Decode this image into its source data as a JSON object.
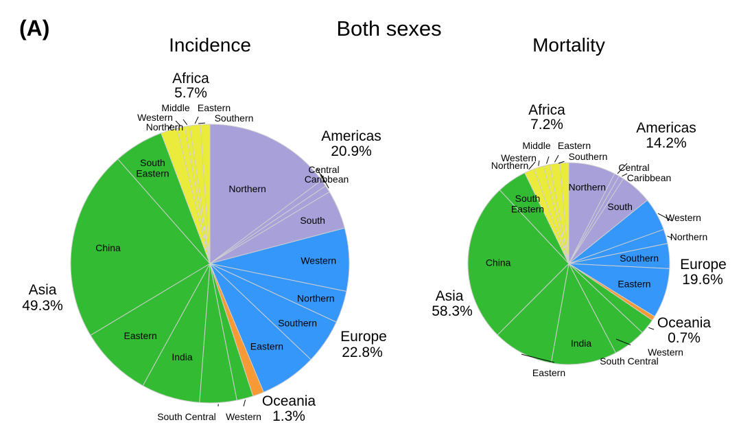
{
  "panel_label": "(A)",
  "title": "Both sexes",
  "colors": {
    "Africa": "#ebeb3b",
    "Americas": "#a8a0d9",
    "Europe": "#3697fa",
    "Oceania": "#f79a36",
    "Asia": "#33bb33",
    "divider": "#d0d0d0"
  },
  "chart_data": [
    {
      "type": "pie",
      "title": "Incidence",
      "regions": [
        {
          "name": "Americas",
          "percent": "20.9%",
          "value": 20.9,
          "subregions": [
            {
              "label": "Northern",
              "value": 14.8
            },
            {
              "label": "Central",
              "value": 0.8
            },
            {
              "label": "Caribbean",
              "value": 0.8
            },
            {
              "label": "South",
              "value": 4.5
            }
          ]
        },
        {
          "name": "Europe",
          "percent": "22.8%",
          "value": 22.8,
          "subregions": [
            {
              "label": "Western",
              "value": 7.3
            },
            {
              "label": "Northern",
              "value": 3.7
            },
            {
              "label": "Southern",
              "value": 5.2
            },
            {
              "label": "Eastern",
              "value": 6.6
            }
          ]
        },
        {
          "name": "Oceania",
          "percent": "1.3%",
          "value": 1.3,
          "subregions": [
            {
              "label": "",
              "value": 1.3
            }
          ]
        },
        {
          "name": "Asia",
          "percent": "49.3%",
          "value": 49.3,
          "subregions": [
            {
              "label": "Western",
              "value": 1.9
            },
            {
              "label": "South Central",
              "value": 4.3
            },
            {
              "label": "India",
              "value": 6.8
            },
            {
              "label": "Eastern",
              "value": 8.4
            },
            {
              "label": "China",
              "value": 22.1
            },
            {
              "label": "South Eastern",
              "value": 5.8
            }
          ]
        },
        {
          "name": "Africa",
          "percent": "5.7%",
          "value": 5.7,
          "subregions": [
            {
              "label": "Northern",
              "value": 1.9
            },
            {
              "label": "Western",
              "value": 0.9
            },
            {
              "label": "Middle",
              "value": 0.6
            },
            {
              "label": "Eastern",
              "value": 1.2
            },
            {
              "label": "Southern",
              "value": 1.1
            }
          ]
        }
      ]
    },
    {
      "type": "pie",
      "title": "Mortality",
      "regions": [
        {
          "name": "Americas",
          "percent": "14.2%",
          "value": 14.2,
          "subregions": [
            {
              "label": "Northern",
              "value": 7.5
            },
            {
              "label": "Central",
              "value": 0.8
            },
            {
              "label": "Caribbean",
              "value": 0.8
            },
            {
              "label": "South",
              "value": 5.1
            }
          ]
        },
        {
          "name": "Europe",
          "percent": "19.6%",
          "value": 19.6,
          "subregions": [
            {
              "label": "Western",
              "value": 5.3
            },
            {
              "label": "Northern",
              "value": 2.3
            },
            {
              "label": "Southern",
              "value": 4.0
            },
            {
              "label": "Eastern",
              "value": 8.0
            }
          ]
        },
        {
          "name": "Oceania",
          "percent": "0.7%",
          "value": 0.7,
          "subregions": [
            {
              "label": "",
              "value": 0.7
            }
          ]
        },
        {
          "name": "Asia",
          "percent": "58.3%",
          "value": 58.3,
          "subregions": [
            {
              "label": "Western",
              "value": 2.5
            },
            {
              "label": "South Central",
              "value": 5.3
            },
            {
              "label": "India",
              "value": 10.5
            },
            {
              "label": "Eastern",
              "value": 9.7
            },
            {
              "label": "China",
              "value": 25.5
            },
            {
              "label": "South Eastern",
              "value": 4.8
            }
          ]
        },
        {
          "name": "Africa",
          "percent": "7.2%",
          "value": 7.2,
          "subregions": [
            {
              "label": "Northern",
              "value": 1.6
            },
            {
              "label": "Western",
              "value": 1.6
            },
            {
              "label": "Middle",
              "value": 1.0
            },
            {
              "label": "Eastern",
              "value": 1.6
            },
            {
              "label": "Southern",
              "value": 1.4
            }
          ]
        }
      ]
    }
  ]
}
